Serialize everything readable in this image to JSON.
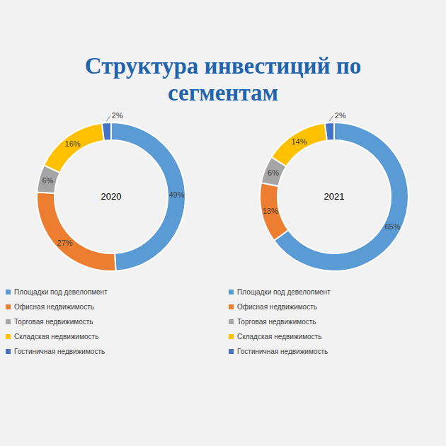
{
  "title": "Структура инвестиций по сегментам",
  "chart_data": [
    {
      "type": "pie",
      "title": "2020",
      "categories": [
        "Площадки под девелопмент",
        "Офисная недвижимость",
        "Торговая недвижимость",
        "Складская недвижимость",
        "Гостиничная недвижимость"
      ],
      "values": [
        49,
        27,
        6,
        16,
        2
      ],
      "value_labels": [
        "49%",
        "27%",
        "6%",
        "16%",
        "2%"
      ],
      "colors": [
        "#5b9bd5",
        "#ed7d31",
        "#a5a5a5",
        "#ffc000",
        "#4472c4"
      ],
      "data_labels": true,
      "legend": "bottom"
    },
    {
      "type": "pie",
      "title": "2021",
      "categories": [
        "Площадки под девелопмент",
        "Офисная недвижимость",
        "Торговая недвижимость",
        "Складская недвижимость",
        "Гостиничная недвижимость"
      ],
      "values": [
        65,
        13,
        6,
        14,
        2
      ],
      "value_labels": [
        "65%",
        "13%",
        "6%",
        "14%",
        "2%"
      ],
      "colors": [
        "#5b9bd5",
        "#ed7d31",
        "#a5a5a5",
        "#ffc000",
        "#4472c4"
      ],
      "data_labels": true,
      "legend": "bottom"
    }
  ]
}
